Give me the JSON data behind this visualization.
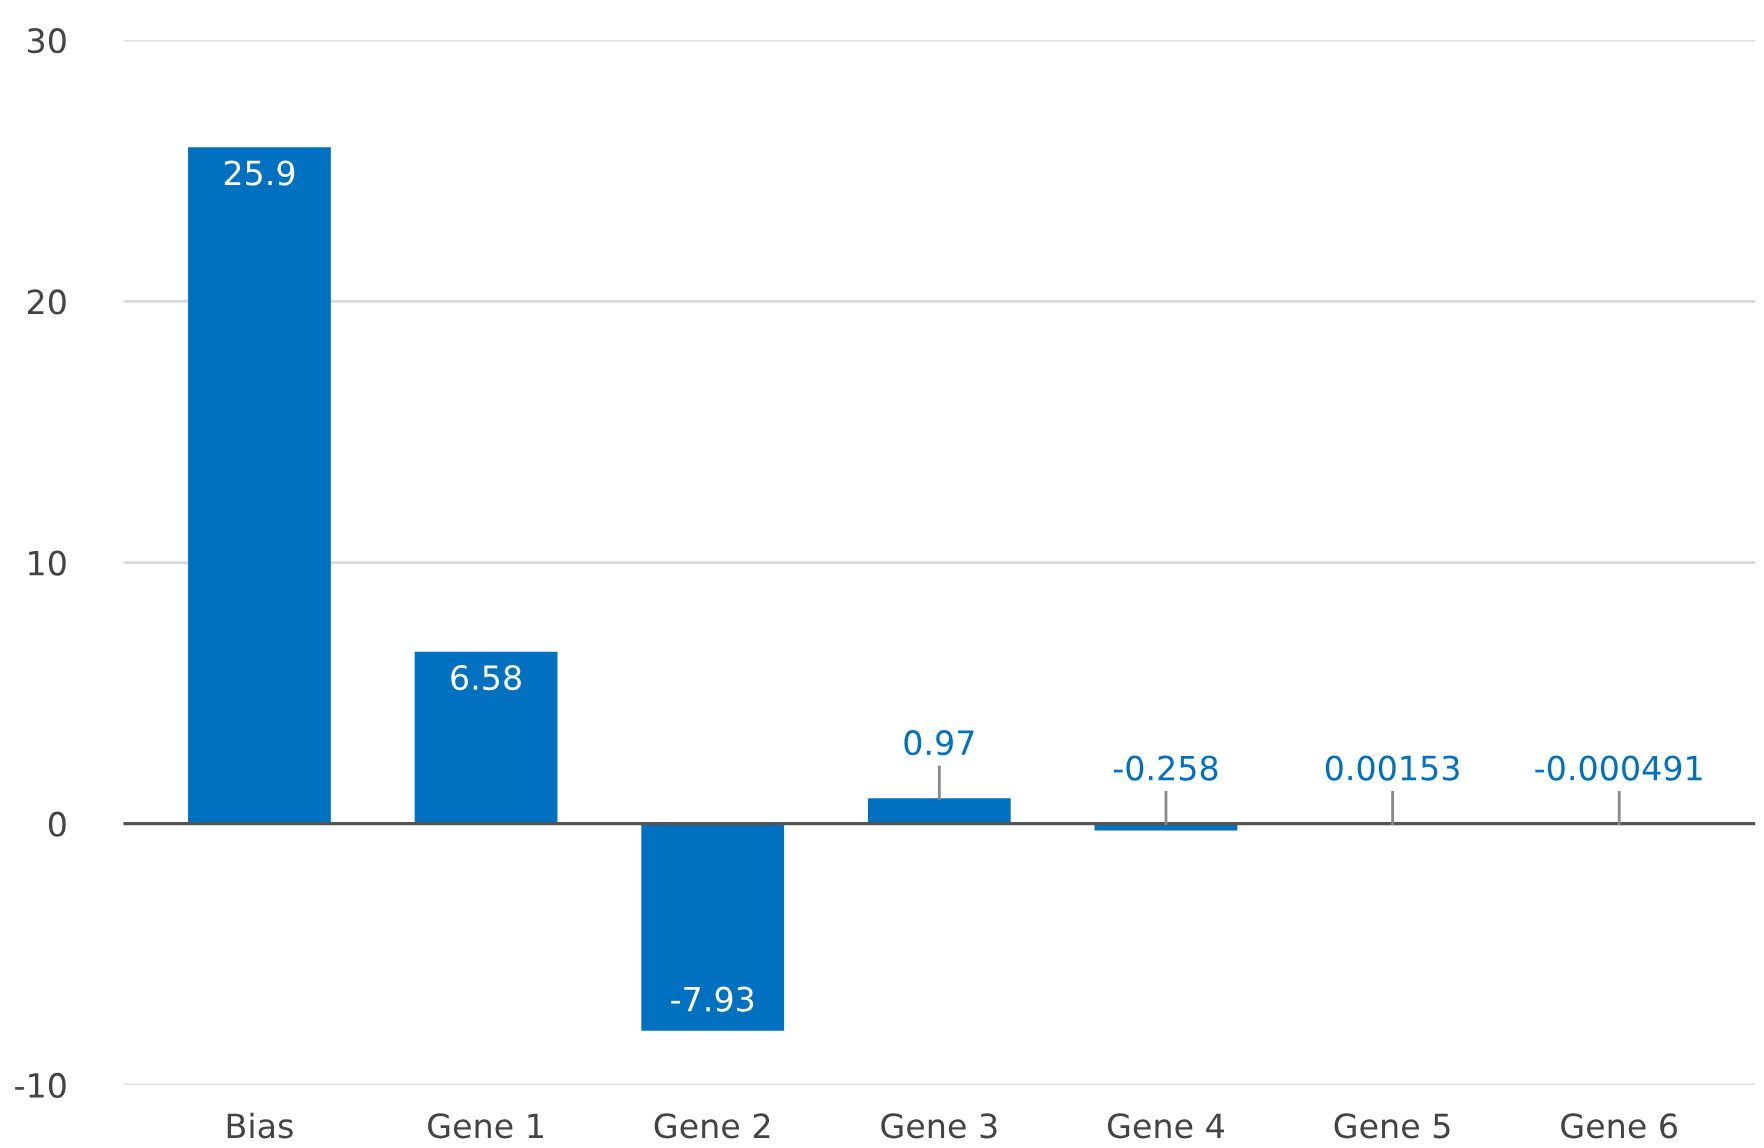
{
  "chart_data": {
    "type": "bar",
    "categories": [
      "Bias",
      "Gene 1",
      "Gene 2",
      "Gene 3",
      "Gene 4",
      "Gene 5",
      "Gene 6"
    ],
    "values": [
      25.9,
      6.58,
      -7.93,
      0.97,
      -0.258,
      0.00153,
      -0.000491
    ],
    "color": "#0070c0",
    "ylim": [
      -10,
      30
    ],
    "yticks": [
      -10,
      0,
      10,
      20,
      30
    ],
    "grid": "y",
    "data_labels": true
  }
}
